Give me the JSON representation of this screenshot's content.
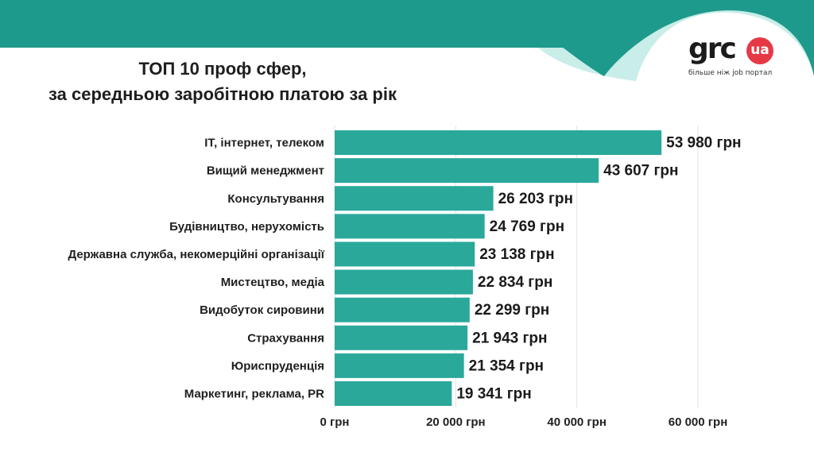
{
  "header": {
    "title_line1": "ТОП 10 проф сфер,",
    "title_line2": "за середньою заробітною платою за рік"
  },
  "logo": {
    "brand": "grc",
    "suffix": "ua",
    "tagline": "більше ніж job портал"
  },
  "colors": {
    "bar": "#2aa89a",
    "banner_dark": "#1e9a8c",
    "banner_light": "#c9ede8",
    "logo_accent": "#e63946"
  },
  "chart_data": {
    "type": "bar",
    "orientation": "horizontal",
    "title": "ТОП 10 проф сфер, за середньою заробітною платою за рік",
    "categories": [
      "ІТ, інтернет, телеком",
      "Вищий менеджмент",
      "Консультування",
      "Будівництво, нерухомість",
      "Державна служба, некомерційні організації",
      "Мистецтво, медіа",
      "Видобуток сировини",
      "Страхування",
      "Юриспруденція",
      "Маркетинг, реклама,  PR"
    ],
    "values": [
      53980,
      43607,
      26203,
      24769,
      23138,
      22834,
      22299,
      21943,
      21354,
      19341
    ],
    "value_labels": [
      "53 980 грн",
      "43 607 грн",
      "26 203 грн",
      "24 769 грн",
      "23 138 грн",
      "22 834 грн",
      "22 299 грн",
      "21 943 грн",
      "21 354 грн",
      "19 341 грн"
    ],
    "xlim": [
      0,
      60000
    ],
    "x_ticks": [
      0,
      20000,
      40000,
      60000
    ],
    "x_tick_labels": [
      "0 грн",
      "20 000 грн",
      "40 000 грн",
      "60 000 грн"
    ],
    "xlabel": "",
    "ylabel": "",
    "grid": "vertical",
    "legend": "none"
  }
}
